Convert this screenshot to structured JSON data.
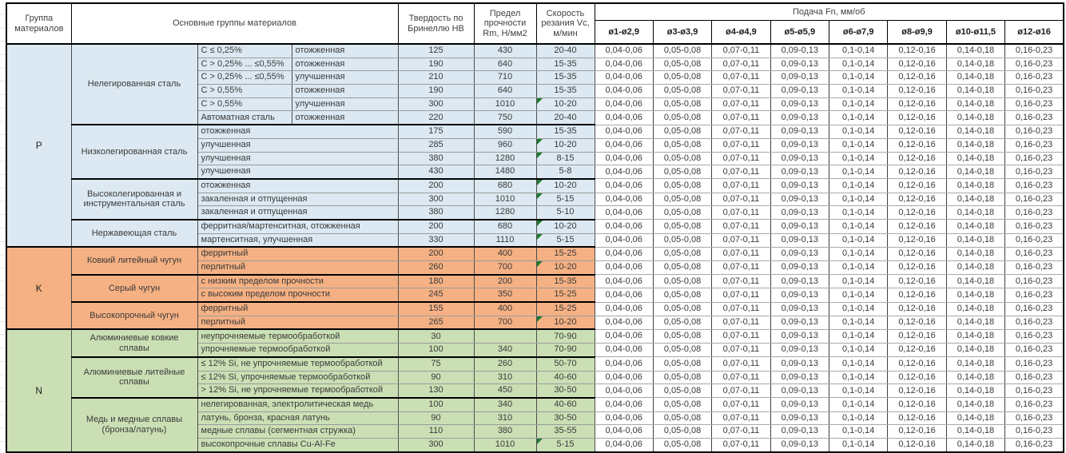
{
  "header": {
    "col_group": "Группа материалов",
    "col_main": "Основные группы материалов",
    "col_hardness": "Твердость по Бринеллю HB",
    "col_strength": "Предел прочности Rm, Н/мм2",
    "col_speed": "Скорость резания Vc, м/мин",
    "col_feed": "Подача Fn, мм/об",
    "feed_diameters": [
      "ø1-ø2,9",
      "ø3-ø3,9",
      "ø4-ø4,9",
      "ø5-ø5,9",
      "ø6-ø7,9",
      "ø8-ø9,9",
      "ø10-ø11,5",
      "ø12-ø16"
    ]
  },
  "feed_values": [
    "0,04-0,06",
    "0,05-0,08",
    "0,07-0,11",
    "0,09-0,13",
    "0,1-0,14",
    "0,12-0,16",
    "0,14-0,18",
    "0,16-0,23"
  ],
  "flag_color": "#1e7b30",
  "groups": [
    {
      "code": "P",
      "color": "#dce9f2",
      "families": [
        {
          "name": "Нелегированная сталь",
          "rows": [
            {
              "sub1": "С ≤ 0,25%",
              "sub2": "отожженная",
              "hb": "125",
              "rm": "430",
              "vc": "20-40",
              "flag": false
            },
            {
              "sub1": "С > 0,25% ... ≤0,55%",
              "sub2": "отожженная",
              "hb": "190",
              "rm": "640",
              "vc": "15-35",
              "flag": false
            },
            {
              "sub1": "С > 0,25% ... ≤0,55%",
              "sub2": "улучшенная",
              "hb": "210",
              "rm": "710",
              "vc": "15-35",
              "flag": false
            },
            {
              "sub1": "С > 0,55%",
              "sub2": "отожженная",
              "hb": "190",
              "rm": "640",
              "vc": "15-35",
              "flag": false
            },
            {
              "sub1": "С > 0,55%",
              "sub2": "улучшенная",
              "hb": "300",
              "rm": "1010",
              "vc": "10-20",
              "flag": true
            },
            {
              "sub1": "Автоматная сталь",
              "sub2": "отожженная",
              "hb": "220",
              "rm": "750",
              "vc": "20-40",
              "flag": false
            }
          ]
        },
        {
          "name": "Низколегированная сталь",
          "rows": [
            {
              "sub1": "отожженная",
              "sub2": null,
              "hb": "175",
              "rm": "590",
              "vc": "15-35",
              "flag": false
            },
            {
              "sub1": "улучшенная",
              "sub2": null,
              "hb": "285",
              "rm": "960",
              "vc": "10-20",
              "flag": true
            },
            {
              "sub1": "улучшенная",
              "sub2": null,
              "hb": "380",
              "rm": "1280",
              "vc": "8-15",
              "flag": true
            },
            {
              "sub1": "улучшенная",
              "sub2": null,
              "hb": "430",
              "rm": "1480",
              "vc": "5-8",
              "flag": false
            }
          ]
        },
        {
          "name": "Высоколегированная и инструментальная сталь",
          "rows": [
            {
              "sub1": "отожженная",
              "sub2": null,
              "hb": "200",
              "rm": "680",
              "vc": "10-20",
              "flag": true
            },
            {
              "sub1": "закаленная и отпущенная",
              "sub2": null,
              "hb": "300",
              "rm": "1010",
              "vc": "5-15",
              "flag": true
            },
            {
              "sub1": "закаленная и отпущенная",
              "sub2": null,
              "hb": "380",
              "rm": "1280",
              "vc": "5-10",
              "flag": false
            }
          ]
        },
        {
          "name": "Нержавеющая сталь",
          "rows": [
            {
              "sub1": "ферритная/мартенситная, отожженная",
              "sub2": null,
              "hb": "200",
              "rm": "680",
              "vc": "10-20",
              "flag": true
            },
            {
              "sub1": "мартенситная, улучшенная",
              "sub2": null,
              "hb": "330",
              "rm": "1110",
              "vc": "5-15",
              "flag": true
            }
          ]
        }
      ]
    },
    {
      "code": "K",
      "color": "#f5b183",
      "families": [
        {
          "name": "Ковкий литейный чугун",
          "rows": [
            {
              "sub1": "ферритный",
              "sub2": null,
              "hb": "200",
              "rm": "400",
              "vc": "15-25",
              "flag": false
            },
            {
              "sub1": "перлитный",
              "sub2": null,
              "hb": "260",
              "rm": "700",
              "vc": "10-20",
              "flag": true
            }
          ]
        },
        {
          "name": "Серый чугун",
          "rows": [
            {
              "sub1": "с низким пределом прочности",
              "sub2": null,
              "hb": "180",
              "rm": "200",
              "vc": "15-35",
              "flag": false
            },
            {
              "sub1": "с высоким пределом прочности",
              "sub2": null,
              "hb": "245",
              "rm": "350",
              "vc": "15-25",
              "flag": false
            }
          ]
        },
        {
          "name": "Высокопрочный чугун",
          "rows": [
            {
              "sub1": "ферритный",
              "sub2": null,
              "hb": "155",
              "rm": "400",
              "vc": "15-25",
              "flag": false
            },
            {
              "sub1": "перлитный",
              "sub2": null,
              "hb": "265",
              "rm": "700",
              "vc": "10-20",
              "flag": true
            }
          ]
        }
      ]
    },
    {
      "code": "N",
      "color": "#cbdfb4",
      "families": [
        {
          "name": "Алюминиевые ковкие сплавы",
          "rows": [
            {
              "sub1": "неупрочняемые термообработкой",
              "sub2": null,
              "hb": "30",
              "rm": "",
              "vc": "70-90",
              "flag": false
            },
            {
              "sub1": "упрочняемые термообработкой",
              "sub2": null,
              "hb": "100",
              "rm": "340",
              "vc": "70-90",
              "flag": false
            }
          ]
        },
        {
          "name": "Алюминиевые литейные сплавы",
          "rows": [
            {
              "sub1": "≤ 12% Si, не упрочняемые термообработкой",
              "sub2": null,
              "hb": "75",
              "rm": "260",
              "vc": "50-70",
              "flag": false
            },
            {
              "sub1": "≤ 12% Si, упрочняемые термообработкой",
              "sub2": null,
              "hb": "90",
              "rm": "310",
              "vc": "40-60",
              "flag": false
            },
            {
              "sub1": "> 12% Si, не упрочняемые термообработкой",
              "sub2": null,
              "hb": "130",
              "rm": "450",
              "vc": "30-50",
              "flag": false
            }
          ]
        },
        {
          "name": "Медь и медные сплавы (бронза/латунь)",
          "rows": [
            {
              "sub1": "нелегированная, электролитическая медь",
              "sub2": null,
              "hb": "100",
              "rm": "340",
              "vc": "40-60",
              "flag": false
            },
            {
              "sub1": "латунь, бронза, красная латунь",
              "sub2": null,
              "hb": "90",
              "rm": "310",
              "vc": "30-50",
              "flag": false
            },
            {
              "sub1": "медные сплавы (сегментная стружка)",
              "sub2": null,
              "hb": "110",
              "rm": "380",
              "vc": "35-55",
              "flag": false
            },
            {
              "sub1": "высокопрочные сплавы Cu-Al-Fe",
              "sub2": null,
              "hb": "300",
              "rm": "1010",
              "vc": "5-15",
              "flag": true
            }
          ]
        }
      ]
    }
  ]
}
